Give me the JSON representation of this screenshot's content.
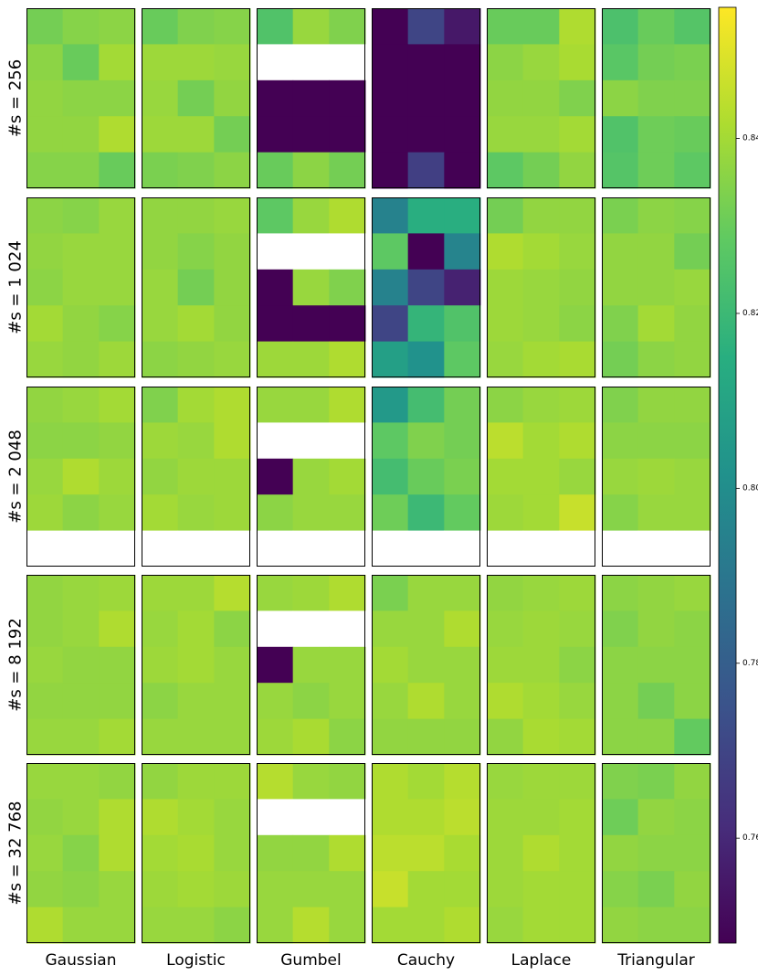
{
  "chart_data": {
    "type": "heatmap",
    "colormap": "viridis",
    "color_range": [
      0.748,
      0.855
    ],
    "colorbar_ticks": [
      0.76,
      0.78,
      0.8,
      0.82,
      0.84
    ],
    "colorbar_tick_labels": [
      "0.76",
      "0.78",
      "0.80",
      "0.82",
      "0.84"
    ],
    "columns": [
      "Gaussian",
      "Logistic",
      "Gumbel",
      "Cauchy",
      "Laplace",
      "Triangular"
    ],
    "row_labels": [
      "#s = 256",
      "#s = 1 024",
      "#s = 2 048",
      "#s = 8 192",
      "#s = 32 768"
    ],
    "missing_color": "#ffffff",
    "panel_shape": [
      5,
      3
    ],
    "panels": [
      [
        [
          [
            0.832,
            0.835,
            0.836
          ],
          [
            0.836,
            0.83,
            0.84
          ],
          [
            0.837,
            0.836,
            0.836
          ],
          [
            0.837,
            0.837,
            0.842
          ],
          [
            0.835,
            0.835,
            0.83
          ]
        ],
        [
          [
            0.83,
            0.834,
            0.835
          ],
          [
            0.839,
            0.839,
            0.838
          ],
          [
            0.838,
            0.832,
            0.837
          ],
          [
            0.839,
            0.839,
            0.832
          ],
          [
            0.833,
            0.834,
            0.836
          ]
        ],
        [
          [
            0.825,
            0.838,
            0.834
          ],
          [
            null,
            null,
            null
          ],
          [
            0.748,
            0.748,
            0.748
          ],
          [
            0.748,
            0.748,
            0.748
          ],
          [
            0.83,
            0.836,
            0.832
          ]
        ],
        [
          [
            0.748,
            0.77,
            0.755
          ],
          [
            0.748,
            0.748,
            0.748
          ],
          [
            0.748,
            0.748,
            0.748
          ],
          [
            0.748,
            0.748,
            0.748
          ],
          [
            0.748,
            0.768,
            0.748
          ]
        ],
        [
          [
            0.83,
            0.83,
            0.842
          ],
          [
            0.836,
            0.838,
            0.841
          ],
          [
            0.837,
            0.837,
            0.834
          ],
          [
            0.838,
            0.838,
            0.84
          ],
          [
            0.828,
            0.832,
            0.837
          ]
        ],
        [
          [
            0.824,
            0.83,
            0.826
          ],
          [
            0.827,
            0.832,
            0.833
          ],
          [
            0.836,
            0.834,
            0.834
          ],
          [
            0.825,
            0.831,
            0.83
          ],
          [
            0.826,
            0.831,
            0.828
          ]
        ]
      ],
      [
        [
          [
            0.836,
            0.835,
            0.838
          ],
          [
            0.837,
            0.838,
            0.838
          ],
          [
            0.836,
            0.838,
            0.838
          ],
          [
            0.84,
            0.837,
            0.835
          ],
          [
            0.838,
            0.837,
            0.839
          ]
        ],
        [
          [
            0.837,
            0.837,
            0.838
          ],
          [
            0.837,
            0.835,
            0.837
          ],
          [
            0.838,
            0.832,
            0.837
          ],
          [
            0.838,
            0.84,
            0.837
          ],
          [
            0.836,
            0.837,
            0.838
          ]
        ],
        [
          [
            0.828,
            0.838,
            0.842
          ],
          [
            null,
            null,
            null
          ],
          [
            0.748,
            0.838,
            0.834
          ],
          [
            0.748,
            0.748,
            0.748
          ],
          [
            0.839,
            0.839,
            0.842
          ]
        ],
        [
          [
            0.795,
            0.815,
            0.815
          ],
          [
            0.828,
            0.748,
            0.796
          ],
          [
            0.795,
            0.77,
            0.758
          ],
          [
            0.77,
            0.818,
            0.825
          ],
          [
            0.808,
            0.802,
            0.828
          ]
        ],
        [
          [
            0.832,
            0.837,
            0.837
          ],
          [
            0.842,
            0.84,
            0.838
          ],
          [
            0.839,
            0.838,
            0.837
          ],
          [
            0.839,
            0.838,
            0.836
          ],
          [
            0.838,
            0.84,
            0.841
          ]
        ],
        [
          [
            0.833,
            0.836,
            0.835
          ],
          [
            0.837,
            0.837,
            0.832
          ],
          [
            0.837,
            0.837,
            0.838
          ],
          [
            0.834,
            0.84,
            0.837
          ],
          [
            0.832,
            0.836,
            0.837
          ]
        ]
      ],
      [
        [
          [
            0.837,
            0.838,
            0.84
          ],
          [
            0.836,
            0.836,
            0.837
          ],
          [
            0.838,
            0.842,
            0.839
          ],
          [
            0.839,
            0.836,
            0.838
          ],
          [
            null,
            null,
            null
          ]
        ],
        [
          [
            0.834,
            0.84,
            0.842
          ],
          [
            0.839,
            0.838,
            0.842
          ],
          [
            0.837,
            0.839,
            0.839
          ],
          [
            0.84,
            0.838,
            0.839
          ],
          [
            null,
            null,
            null
          ]
        ],
        [
          [
            0.838,
            0.838,
            0.842
          ],
          [
            null,
            null,
            null
          ],
          [
            0.748,
            0.838,
            0.84
          ],
          [
            0.836,
            0.838,
            0.838
          ],
          [
            null,
            null,
            null
          ]
        ],
        [
          [
            0.805,
            0.822,
            0.832
          ],
          [
            0.828,
            0.834,
            0.832
          ],
          [
            0.822,
            0.83,
            0.833
          ],
          [
            0.831,
            0.82,
            0.829
          ],
          [
            null,
            null,
            null
          ]
        ],
        [
          [
            0.836,
            0.838,
            0.839
          ],
          [
            0.844,
            0.84,
            0.842
          ],
          [
            0.84,
            0.84,
            0.838
          ],
          [
            0.839,
            0.84,
            0.846
          ],
          [
            null,
            null,
            null
          ]
        ],
        [
          [
            0.834,
            0.837,
            0.837
          ],
          [
            0.836,
            0.836,
            0.836
          ],
          [
            0.838,
            0.839,
            0.838
          ],
          [
            0.835,
            0.838,
            0.838
          ],
          [
            null,
            null,
            null
          ]
        ]
      ],
      [
        [
          [
            0.837,
            0.838,
            0.839
          ],
          [
            0.837,
            0.838,
            0.842
          ],
          [
            0.838,
            0.837,
            0.837
          ],
          [
            0.837,
            0.837,
            0.837
          ],
          [
            0.838,
            0.838,
            0.84
          ]
        ],
        [
          [
            0.839,
            0.839,
            0.843
          ],
          [
            0.838,
            0.84,
            0.836
          ],
          [
            0.839,
            0.84,
            0.838
          ],
          [
            0.836,
            0.838,
            0.838
          ],
          [
            0.838,
            0.838,
            0.838
          ]
        ],
        [
          [
            0.838,
            0.839,
            0.842
          ],
          [
            null,
            null,
            null
          ],
          [
            0.748,
            0.838,
            0.838
          ],
          [
            0.838,
            0.836,
            0.838
          ],
          [
            0.839,
            0.841,
            0.836
          ]
        ],
        [
          [
            0.833,
            0.838,
            0.838
          ],
          [
            0.838,
            0.838,
            0.842
          ],
          [
            0.84,
            0.838,
            0.838
          ],
          [
            0.838,
            0.842,
            0.838
          ],
          [
            0.837,
            0.837,
            0.837
          ]
        ],
        [
          [
            0.837,
            0.838,
            0.839
          ],
          [
            0.838,
            0.839,
            0.838
          ],
          [
            0.839,
            0.839,
            0.836
          ],
          [
            0.842,
            0.84,
            0.838
          ],
          [
            0.837,
            0.841,
            0.84
          ]
        ],
        [
          [
            0.836,
            0.837,
            0.838
          ],
          [
            0.834,
            0.837,
            0.836
          ],
          [
            0.836,
            0.836,
            0.836
          ],
          [
            0.836,
            0.832,
            0.836
          ],
          [
            0.836,
            0.836,
            0.829
          ]
        ]
      ],
      [
        [
          [
            0.838,
            0.838,
            0.837
          ],
          [
            0.837,
            0.838,
            0.842
          ],
          [
            0.838,
            0.835,
            0.842
          ],
          [
            0.837,
            0.836,
            0.838
          ],
          [
            0.842,
            0.838,
            0.838
          ]
        ],
        [
          [
            0.837,
            0.839,
            0.839
          ],
          [
            0.842,
            0.84,
            0.838
          ],
          [
            0.84,
            0.841,
            0.838
          ],
          [
            0.839,
            0.84,
            0.839
          ],
          [
            0.838,
            0.838,
            0.836
          ]
        ],
        [
          [
            0.843,
            0.838,
            0.837
          ],
          [
            null,
            null,
            null
          ],
          [
            0.837,
            0.837,
            0.842
          ],
          [
            0.838,
            0.838,
            0.838
          ],
          [
            0.838,
            0.843,
            0.838
          ]
        ],
        [
          [
            0.842,
            0.84,
            0.843
          ],
          [
            0.842,
            0.842,
            0.844
          ],
          [
            0.844,
            0.844,
            0.841
          ],
          [
            0.846,
            0.84,
            0.84
          ],
          [
            0.84,
            0.84,
            0.842
          ]
        ],
        [
          [
            0.838,
            0.839,
            0.839
          ],
          [
            0.839,
            0.839,
            0.84
          ],
          [
            0.839,
            0.842,
            0.84
          ],
          [
            0.839,
            0.84,
            0.84
          ],
          [
            0.838,
            0.84,
            0.84
          ]
        ],
        [
          [
            0.834,
            0.833,
            0.837
          ],
          [
            0.831,
            0.837,
            0.836
          ],
          [
            0.837,
            0.836,
            0.836
          ],
          [
            0.835,
            0.833,
            0.837
          ],
          [
            0.837,
            0.836,
            0.836
          ]
        ]
      ]
    ]
  }
}
